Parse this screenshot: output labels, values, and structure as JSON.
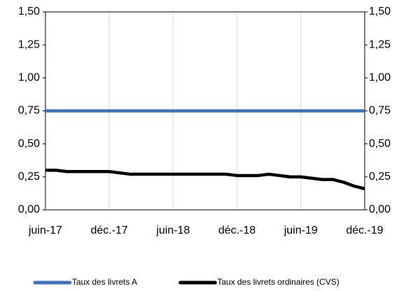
{
  "chart_data": {
    "type": "line",
    "categories": [
      "juin-17",
      null,
      null,
      null,
      null,
      null,
      "déc.-17",
      null,
      null,
      null,
      null,
      null,
      "juin-18",
      null,
      null,
      null,
      null,
      null,
      "déc.-18",
      null,
      null,
      null,
      null,
      null,
      "juin-19",
      null,
      null,
      null,
      null,
      null,
      "déc.-19"
    ],
    "series": [
      {
        "name": "Taux des livrets A",
        "color": "#3b73c0",
        "values": [
          0.75,
          0.75,
          0.75,
          0.75,
          0.75,
          0.75,
          0.75,
          0.75,
          0.75,
          0.75,
          0.75,
          0.75,
          0.75,
          0.75,
          0.75,
          0.75,
          0.75,
          0.75,
          0.75,
          0.75,
          0.75,
          0.75,
          0.75,
          0.75,
          0.75,
          0.75,
          0.75,
          0.75,
          0.75,
          0.75,
          0.75
        ]
      },
      {
        "name": "Taux des livrets ordinaires (CVS)",
        "color": "#000000",
        "values": [
          0.3,
          0.3,
          0.29,
          0.29,
          0.29,
          0.29,
          0.29,
          0.28,
          0.27,
          0.27,
          0.27,
          0.27,
          0.27,
          0.27,
          0.27,
          0.27,
          0.27,
          0.27,
          0.26,
          0.26,
          0.26,
          0.27,
          0.26,
          0.25,
          0.25,
          0.24,
          0.23,
          0.23,
          0.21,
          0.18,
          0.16
        ]
      }
    ],
    "ylim": [
      0,
      1.5
    ],
    "yticks": [
      {
        "value": 0,
        "label": "0,00"
      },
      {
        "value": 0.25,
        "label": "0,25"
      },
      {
        "value": 0.5,
        "label": "0,50"
      },
      {
        "value": 0.75,
        "label": "0,75"
      },
      {
        "value": 1,
        "label": "1,00"
      },
      {
        "value": 1.25,
        "label": "1,25"
      },
      {
        "value": 1.5,
        "label": "1,50"
      }
    ],
    "y2lim": [
      0,
      1.5
    ],
    "y2ticks": [
      {
        "value": 0,
        "label": "0,00"
      },
      {
        "value": 0.25,
        "label": "0,25"
      },
      {
        "value": 0.5,
        "label": "0,50"
      },
      {
        "value": 0.75,
        "label": "0,75"
      },
      {
        "value": 1,
        "label": "1,00"
      },
      {
        "value": 1.25,
        "label": "1,25"
      },
      {
        "value": 1.5,
        "label": "1,50"
      }
    ],
    "grid": true,
    "legend": "bottom"
  }
}
